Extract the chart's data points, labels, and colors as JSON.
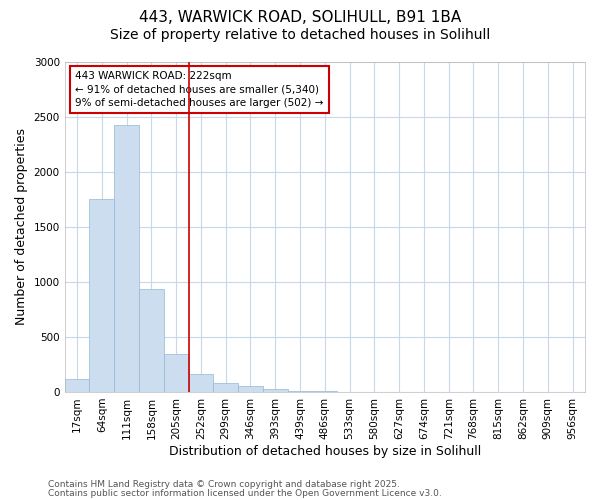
{
  "title1": "443, WARWICK ROAD, SOLIHULL, B91 1BA",
  "title2": "Size of property relative to detached houses in Solihull",
  "xlabel": "Distribution of detached houses by size in Solihull",
  "ylabel": "Number of detached properties",
  "categories": [
    "17sqm",
    "64sqm",
    "111sqm",
    "158sqm",
    "205sqm",
    "252sqm",
    "299sqm",
    "346sqm",
    "393sqm",
    "439sqm",
    "486sqm",
    "533sqm",
    "580sqm",
    "627sqm",
    "674sqm",
    "721sqm",
    "768sqm",
    "815sqm",
    "862sqm",
    "909sqm",
    "956sqm"
  ],
  "values": [
    120,
    1750,
    2420,
    935,
    345,
    160,
    80,
    50,
    30,
    10,
    5,
    3,
    2,
    0,
    0,
    0,
    0,
    0,
    0,
    0,
    0
  ],
  "bar_color": "#ccddef",
  "bar_edge_color": "#92b8d8",
  "red_line_x": 4.5,
  "annotation_text": "443 WARWICK ROAD: 222sqm\n← 91% of detached houses are smaller (5,340)\n9% of semi-detached houses are larger (502) →",
  "annotation_box_color": "#ffffff",
  "annotation_box_edge": "#cc0000",
  "ylim": [
    0,
    3000
  ],
  "yticks": [
    0,
    500,
    1000,
    1500,
    2000,
    2500,
    3000
  ],
  "footnote1": "Contains HM Land Registry data © Crown copyright and database right 2025.",
  "footnote2": "Contains public sector information licensed under the Open Government Licence v3.0.",
  "bg_color": "#ffffff",
  "plot_bg_color": "#ffffff",
  "grid_color": "#c8d8e8",
  "title1_fontsize": 11,
  "title2_fontsize": 10,
  "axis_label_fontsize": 9,
  "tick_fontsize": 7.5,
  "footnote_fontsize": 6.5
}
